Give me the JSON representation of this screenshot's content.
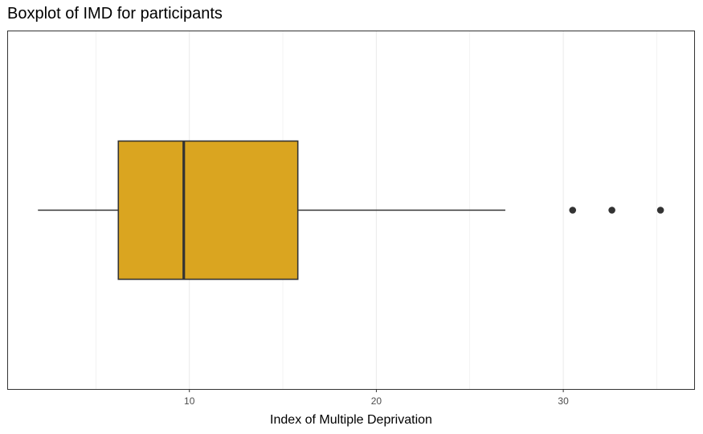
{
  "chart_data": {
    "type": "boxplot",
    "title": "Boxplot of IMD for participants",
    "xlabel": "Index of Multiple Deprivation",
    "ylabel": "",
    "xlim": [
      0.3,
      37.0
    ],
    "x_ticks": [
      10,
      20,
      30
    ],
    "x_minor_ticks": [
      5,
      15,
      25,
      35
    ],
    "grid": true,
    "box": {
      "whisker_low": 1.9,
      "q1": 6.2,
      "median": 9.7,
      "q3": 15.8,
      "whisker_high": 26.9,
      "outliers": [
        30.5,
        32.6,
        35.2
      ]
    },
    "colors": {
      "box_fill": "#DAA520",
      "box_stroke": "#333333",
      "grid": "#EBEBEB",
      "panel_border": "#333333"
    }
  }
}
